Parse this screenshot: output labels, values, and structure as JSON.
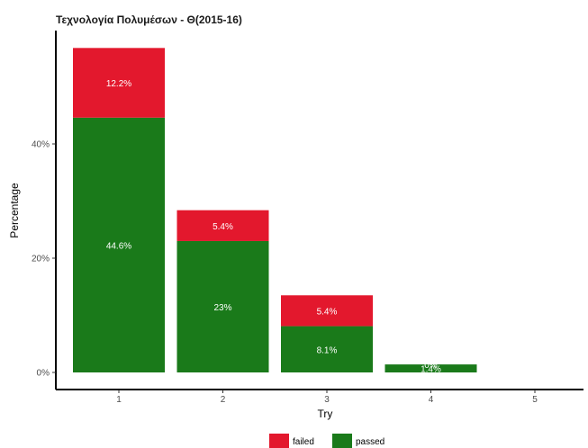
{
  "chart_data": {
    "type": "bar",
    "stacked": true,
    "title": "Τεχνολογία Πολυμέσων - Θ(2015-16)",
    "xlabel": "Try",
    "ylabel": "Percentage",
    "categories": [
      "1",
      "2",
      "3",
      "4",
      "5"
    ],
    "series": [
      {
        "name": "passed",
        "color": "#1a7a1a",
        "values": [
          44.6,
          23,
          8.1,
          1.4,
          0
        ],
        "labels": [
          "44.6%",
          "23%",
          "8.1%",
          "1.4%",
          ""
        ]
      },
      {
        "name": "failed",
        "color": "#e3182d",
        "values": [
          12.2,
          5.4,
          5.4,
          0,
          0
        ],
        "labels": [
          "12.2%",
          "5.4%",
          "5.4%",
          "0%",
          ""
        ]
      }
    ],
    "yticks": [
      0,
      20,
      40
    ],
    "ytick_labels": [
      "0%",
      "20%",
      "40%"
    ],
    "ylim": [
      0,
      58
    ],
    "grid": false,
    "legend_position": "bottom",
    "legend_order": [
      "failed",
      "passed"
    ]
  }
}
